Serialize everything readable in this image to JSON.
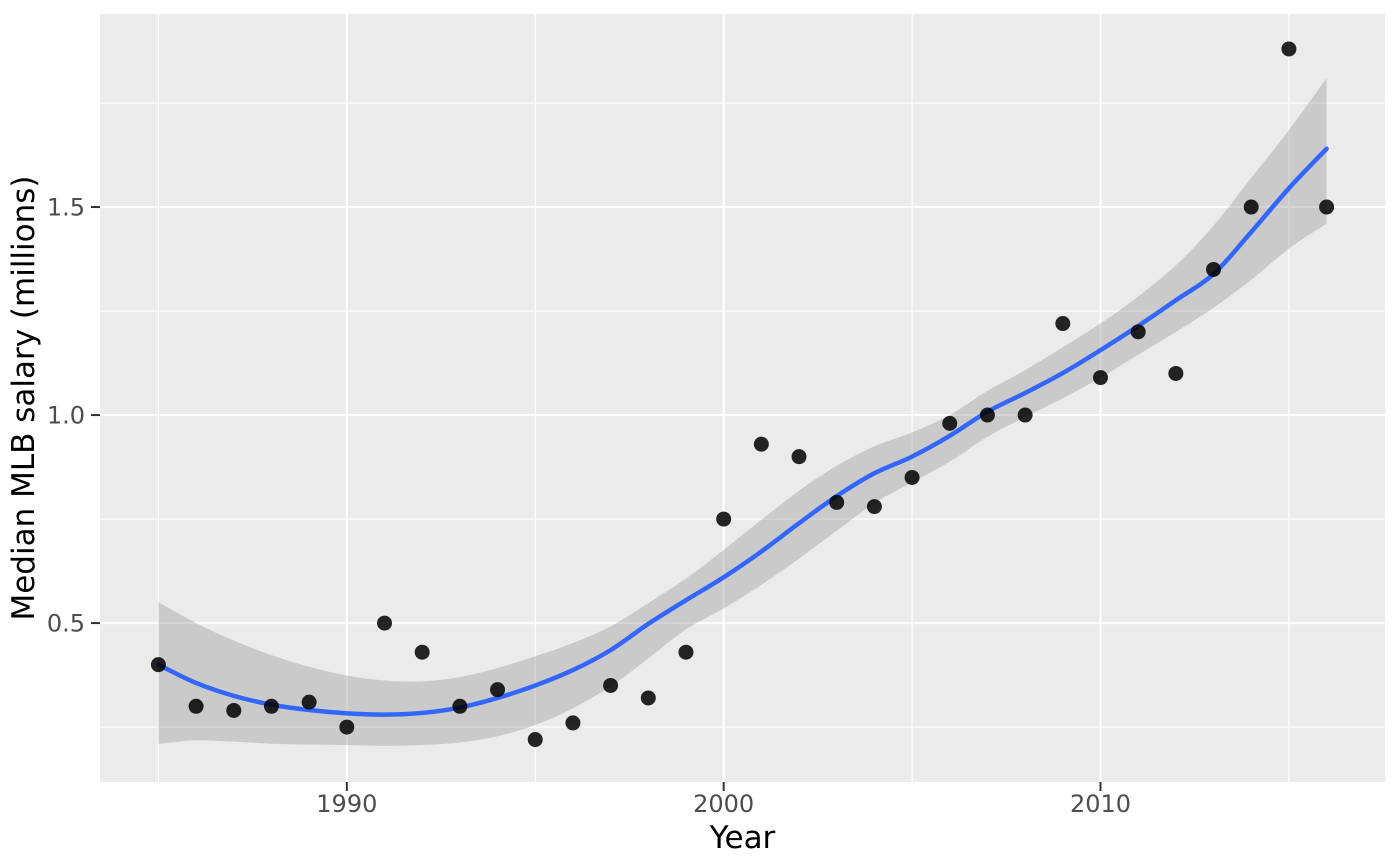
{
  "figure": {
    "background": "#FFFFFF",
    "panel_background": "#EBEBEB"
  },
  "chart_data": {
    "type": "scatter",
    "title": "",
    "xlabel": "Year",
    "ylabel": "Median MLB salary (millions)",
    "legend": "none",
    "grid": "major+minor, white on gray panel",
    "x_domain": [
      1983.45,
      2017.55
    ],
    "y_domain": [
      0.118,
      1.964
    ],
    "x_major_ticks": [
      1990,
      2000,
      2010
    ],
    "x_major_tick_labels": [
      "1990",
      "2000",
      "2010"
    ],
    "x_minor_ticks": [
      1985,
      1995,
      2005,
      2015
    ],
    "y_major_ticks": [
      0.5,
      1.0,
      1.5
    ],
    "y_major_tick_labels": [
      "0.5",
      "1.0",
      "1.5"
    ],
    "y_minor_ticks": [
      0.25,
      0.75,
      1.25,
      1.75
    ],
    "x": [
      1985,
      1986,
      1987,
      1988,
      1989,
      1990,
      1991,
      1992,
      1993,
      1994,
      1995,
      1996,
      1997,
      1998,
      1999,
      2000,
      2001,
      2002,
      2003,
      2004,
      2005,
      2006,
      2007,
      2008,
      2009,
      2010,
      2011,
      2012,
      2013,
      2014,
      2015,
      2016
    ],
    "series": [
      {
        "name": "median-salary-points",
        "geom": "point",
        "values": [
          0.4,
          0.3,
          0.29,
          0.3,
          0.31,
          0.25,
          0.5,
          0.43,
          0.3,
          0.34,
          0.22,
          0.26,
          0.35,
          0.32,
          0.43,
          0.75,
          0.93,
          0.9,
          0.79,
          0.78,
          0.85,
          0.98,
          1.0,
          1.0,
          1.22,
          1.09,
          1.2,
          1.1,
          1.35,
          1.5,
          1.88,
          1.5
        ]
      },
      {
        "name": "loess-smooth",
        "geom": "line",
        "values": [
          0.4,
          0.356,
          0.325,
          0.304,
          0.291,
          0.283,
          0.28,
          0.284,
          0.297,
          0.32,
          0.35,
          0.387,
          0.435,
          0.498,
          0.555,
          0.61,
          0.672,
          0.74,
          0.805,
          0.86,
          0.9,
          0.95,
          1.008,
          1.053,
          1.101,
          1.156,
          1.214,
          1.276,
          1.339,
          1.44,
          1.545,
          1.64
        ]
      },
      {
        "name": "confidence-ribbon-upper",
        "geom": "ribbon-upper",
        "values": [
          0.55,
          0.5,
          0.458,
          0.423,
          0.395,
          0.374,
          0.362,
          0.36,
          0.37,
          0.392,
          0.42,
          0.452,
          0.492,
          0.548,
          0.607,
          0.676,
          0.748,
          0.818,
          0.878,
          0.925,
          0.958,
          1.0,
          1.058,
          1.108,
          1.163,
          1.22,
          1.285,
          1.36,
          1.455,
          1.57,
          1.685,
          1.81
        ]
      },
      {
        "name": "confidence-ribbon-lower",
        "geom": "ribbon-lower",
        "values": [
          0.21,
          0.218,
          0.215,
          0.21,
          0.208,
          0.207,
          0.205,
          0.207,
          0.213,
          0.228,
          0.255,
          0.295,
          0.348,
          0.415,
          0.485,
          0.535,
          0.592,
          0.655,
          0.722,
          0.788,
          0.838,
          0.888,
          0.948,
          0.995,
          1.04,
          1.09,
          1.145,
          1.2,
          1.258,
          1.325,
          1.4,
          1.46
        ]
      }
    ]
  },
  "style": {
    "panel_bg": "#EBEBEB",
    "grid_color": "#FFFFFF",
    "major_grid_width": 2,
    "minor_grid_width": 1.1,
    "point_color": "#000000",
    "point_opacity": 0.85,
    "point_radius": 7.5,
    "smooth_color": "#3366FF",
    "smooth_width": 4.5,
    "ribbon_color": "#999999",
    "ribbon_opacity": 0.4,
    "tick_mark_color": "#333333",
    "tick_label_color": "#4D4D4D",
    "axis_title_color": "#000000",
    "tick_label_size": 24,
    "axis_title_size": 31
  }
}
